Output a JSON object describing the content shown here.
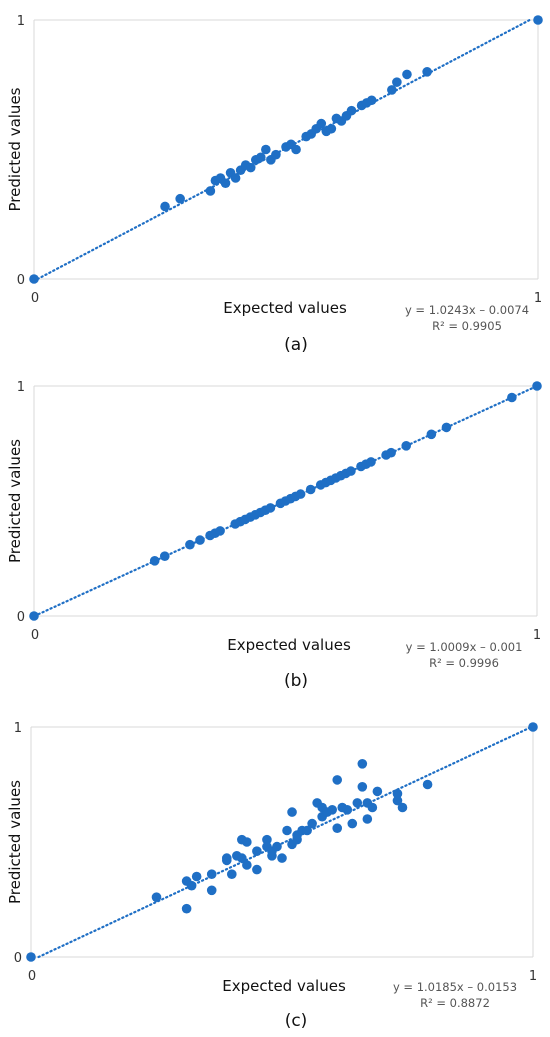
{
  "chart_data": [
    {
      "type": "scatter",
      "caption": "(a)",
      "xlabel": "Expected values",
      "ylabel": "Predicted values",
      "xlim": [
        0,
        1
      ],
      "ylim": [
        0,
        1
      ],
      "x_ticks": [
        "0",
        "1"
      ],
      "y_ticks": [
        "0",
        "1"
      ],
      "marker_color": "#1f6fc5",
      "trendline": {
        "slope": 1.0243,
        "intercept": -0.0074,
        "style": "dotted"
      },
      "equation": "y = 1.0243x – 0.0074",
      "r_squared": "R² = 0.9905",
      "x": [
        0,
        0.26,
        0.29,
        0.35,
        0.36,
        0.37,
        0.38,
        0.39,
        0.4,
        0.41,
        0.42,
        0.43,
        0.44,
        0.45,
        0.46,
        0.47,
        0.48,
        0.5,
        0.51,
        0.52,
        0.54,
        0.55,
        0.56,
        0.57,
        0.58,
        0.59,
        0.6,
        0.61,
        0.62,
        0.63,
        0.65,
        0.66,
        0.67,
        0.71,
        0.72,
        0.74,
        0.78,
        1
      ],
      "y": [
        0,
        0.28,
        0.31,
        0.34,
        0.38,
        0.39,
        0.37,
        0.41,
        0.39,
        0.42,
        0.44,
        0.43,
        0.46,
        0.47,
        0.5,
        0.46,
        0.48,
        0.51,
        0.52,
        0.5,
        0.55,
        0.56,
        0.58,
        0.6,
        0.57,
        0.58,
        0.62,
        0.61,
        0.63,
        0.65,
        0.67,
        0.68,
        0.69,
        0.73,
        0.76,
        0.79,
        0.8,
        1
      ]
    },
    {
      "type": "scatter",
      "caption": "(b)",
      "xlabel": "Expected values",
      "ylabel": "Predicted values",
      "xlim": [
        0,
        1
      ],
      "ylim": [
        0,
        1
      ],
      "x_ticks": [
        "0",
        "1"
      ],
      "y_ticks": [
        "0",
        "1"
      ],
      "marker_color": "#1f6fc5",
      "trendline": {
        "slope": 1.0009,
        "intercept": -0.001,
        "style": "dotted"
      },
      "equation": "y = 1.0009x – 0.001",
      "r_squared": "R² = 0.9996",
      "x": [
        0,
        0.24,
        0.26,
        0.31,
        0.33,
        0.35,
        0.36,
        0.37,
        0.4,
        0.41,
        0.42,
        0.43,
        0.44,
        0.45,
        0.46,
        0.47,
        0.49,
        0.5,
        0.51,
        0.52,
        0.53,
        0.55,
        0.57,
        0.58,
        0.59,
        0.6,
        0.61,
        0.62,
        0.63,
        0.65,
        0.66,
        0.67,
        0.7,
        0.71,
        0.74,
        0.79,
        0.82,
        0.95,
        1
      ],
      "y": [
        0,
        0.24,
        0.26,
        0.31,
        0.33,
        0.35,
        0.36,
        0.37,
        0.4,
        0.41,
        0.42,
        0.43,
        0.44,
        0.45,
        0.46,
        0.47,
        0.49,
        0.5,
        0.51,
        0.52,
        0.53,
        0.55,
        0.57,
        0.58,
        0.59,
        0.6,
        0.61,
        0.62,
        0.63,
        0.65,
        0.66,
        0.67,
        0.7,
        0.71,
        0.74,
        0.79,
        0.82,
        0.95,
        1
      ]
    },
    {
      "type": "scatter",
      "caption": "(c)",
      "xlabel": "Expected values",
      "ylabel": "Predicted values",
      "xlim": [
        0,
        1
      ],
      "ylim": [
        0,
        1
      ],
      "x_ticks": [
        "0",
        "1"
      ],
      "y_ticks": [
        "0",
        "1"
      ],
      "marker_color": "#1f6fc5",
      "trendline": {
        "slope": 1.0185,
        "intercept": -0.0153,
        "style": "dotted"
      },
      "equation": "y = 1.0185x – 0.0153",
      "r_squared": "R² = 0.8872",
      "x": [
        0,
        0.25,
        0.31,
        0.31,
        0.32,
        0.33,
        0.36,
        0.36,
        0.39,
        0.39,
        0.4,
        0.41,
        0.42,
        0.42,
        0.43,
        0.43,
        0.45,
        0.45,
        0.47,
        0.47,
        0.48,
        0.48,
        0.49,
        0.5,
        0.51,
        0.52,
        0.52,
        0.53,
        0.53,
        0.54,
        0.55,
        0.56,
        0.57,
        0.58,
        0.58,
        0.59,
        0.6,
        0.61,
        0.61,
        0.62,
        0.63,
        0.64,
        0.65,
        0.66,
        0.66,
        0.67,
        0.67,
        0.68,
        0.69,
        0.73,
        0.73,
        0.74,
        0.79,
        1
      ],
      "y": [
        0,
        0.26,
        0.33,
        0.21,
        0.31,
        0.35,
        0.29,
        0.36,
        0.43,
        0.42,
        0.36,
        0.44,
        0.51,
        0.43,
        0.4,
        0.5,
        0.38,
        0.46,
        0.51,
        0.48,
        0.44,
        0.46,
        0.48,
        0.43,
        0.55,
        0.49,
        0.63,
        0.51,
        0.53,
        0.55,
        0.55,
        0.58,
        0.67,
        0.65,
        0.61,
        0.63,
        0.64,
        0.77,
        0.56,
        0.65,
        0.64,
        0.58,
        0.67,
        0.74,
        0.84,
        0.6,
        0.67,
        0.65,
        0.72,
        0.68,
        0.71,
        0.65,
        0.75,
        1
      ]
    }
  ]
}
